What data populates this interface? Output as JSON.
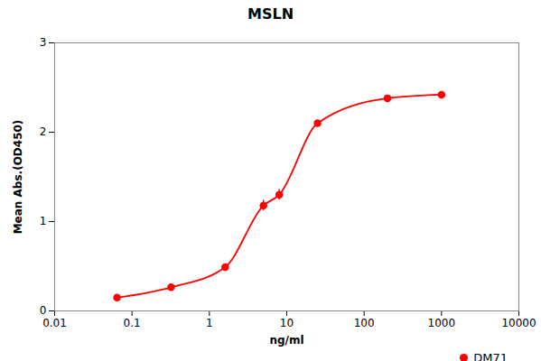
{
  "chart_data": {
    "type": "line",
    "title": "MSLN",
    "xlabel": "ng/ml",
    "ylabel": "Mean Abs.(OD450)",
    "log": "x",
    "x": [
      0.064,
      0.32,
      1.6,
      5.0,
      8.0,
      25.0,
      200.0,
      1000.0
    ],
    "series": [
      {
        "name": "DM71",
        "color": "#FF0000",
        "marker": "circle",
        "line_style": "solid",
        "values": [
          0.148,
          0.265,
          0.49,
          1.18,
          1.3,
          2.1,
          2.38,
          2.42
        ],
        "error": [
          0.008,
          0.008,
          0.025,
          0.06,
          0.06,
          0.015,
          0.01,
          0.02
        ]
      }
    ],
    "xlim": [
      0.01,
      10000
    ],
    "xticks": [
      0.01,
      0.1,
      1,
      10,
      100,
      1000,
      10000
    ],
    "ylim": [
      0,
      3.0
    ],
    "yticks": [
      0,
      1,
      2,
      3
    ],
    "legend": "upper right"
  }
}
